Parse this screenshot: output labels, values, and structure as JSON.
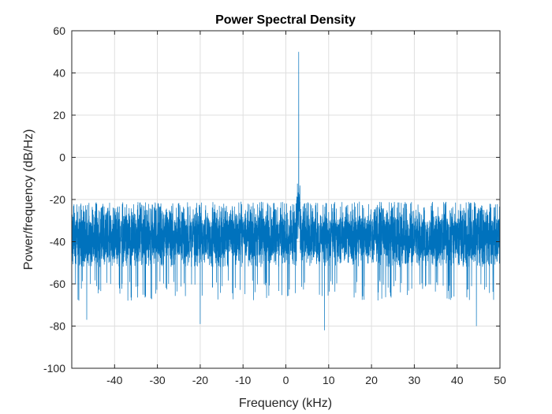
{
  "chart_data": {
    "type": "line",
    "title": "Power Spectral Density",
    "xlabel": "Frequency (kHz)",
    "ylabel": "Power/frequency (dB/Hz)",
    "xlim": [
      -50,
      50
    ],
    "ylim": [
      -100,
      60
    ],
    "x_ticks": [
      -40,
      -30,
      -20,
      -10,
      0,
      10,
      20,
      30,
      40,
      50
    ],
    "y_ticks": [
      -100,
      -80,
      -60,
      -40,
      -20,
      0,
      20,
      40,
      60
    ],
    "grid": true,
    "series": [
      {
        "color": "#0072BD",
        "noise_floor_db": -38,
        "noise_upper_db": -22,
        "noise_lower_db": -58,
        "peak": {
          "x": 3,
          "y": 50
        },
        "deep_dips": [
          {
            "x": -46.5,
            "y": -77
          },
          {
            "x": -20,
            "y": -79
          },
          {
            "x": 9,
            "y": -82
          },
          {
            "x": 44.5,
            "y": -80
          }
        ]
      }
    ]
  },
  "colors": {
    "line": "#0072BD",
    "grid": "#dfdfdf",
    "axis": "#262626"
  }
}
